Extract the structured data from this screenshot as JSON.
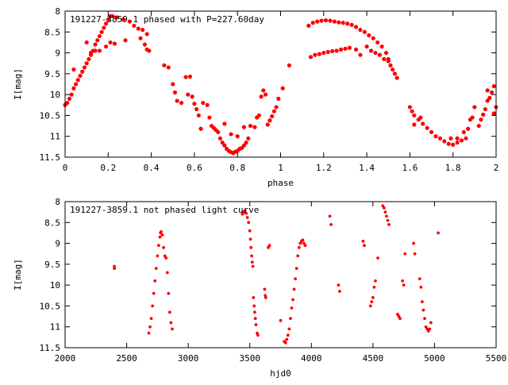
{
  "chart_data": [
    {
      "type": "scatter",
      "title": "191227-3859.1 phased with P=227.60day",
      "xlabel": "phase",
      "ylabel": "I[mag]",
      "xlim": [
        0,
        2
      ],
      "ylim": [
        8,
        11.5
      ],
      "y_inverted": true,
      "xticks": [
        "0",
        "0.2",
        "0.4",
        "0.6",
        "0.8",
        "1",
        "1.2",
        "1.4",
        "1.6",
        "1.8",
        "2"
      ],
      "yticks": [
        "8",
        "8.5",
        "9",
        "9.5",
        "10",
        "10.5",
        "11",
        "11.5"
      ],
      "marker_color": "#ff0000",
      "points": [
        [
          0.0,
          10.25
        ],
        [
          0.01,
          10.2
        ],
        [
          0.02,
          10.1
        ],
        [
          0.03,
          10.0
        ],
        [
          0.04,
          9.85
        ],
        [
          0.05,
          9.75
        ],
        [
          0.06,
          9.65
        ],
        [
          0.07,
          9.55
        ],
        [
          0.08,
          9.45
        ],
        [
          0.09,
          9.35
        ],
        [
          0.1,
          9.25
        ],
        [
          0.11,
          9.15
        ],
        [
          0.12,
          9.05
        ],
        [
          0.13,
          8.95
        ],
        [
          0.14,
          8.8
        ],
        [
          0.15,
          8.7
        ],
        [
          0.16,
          8.6
        ],
        [
          0.17,
          8.5
        ],
        [
          0.18,
          8.4
        ],
        [
          0.19,
          8.3
        ],
        [
          0.2,
          8.2
        ],
        [
          0.21,
          8.12
        ],
        [
          0.22,
          8.12
        ],
        [
          0.24,
          8.15
        ],
        [
          0.27,
          8.2
        ],
        [
          0.3,
          8.25
        ],
        [
          0.32,
          8.35
        ],
        [
          0.34,
          8.42
        ],
        [
          0.04,
          9.4
        ],
        [
          0.1,
          8.75
        ],
        [
          0.12,
          9.0
        ],
        [
          0.14,
          8.95
        ],
        [
          0.16,
          8.95
        ],
        [
          0.19,
          8.85
        ],
        [
          0.21,
          8.75
        ],
        [
          0.23,
          8.78
        ],
        [
          0.28,
          8.7
        ],
        [
          0.35,
          8.65
        ],
        [
          0.37,
          8.8
        ],
        [
          0.38,
          8.92
        ],
        [
          0.39,
          8.95
        ],
        [
          0.36,
          8.45
        ],
        [
          0.38,
          8.55
        ],
        [
          0.46,
          9.3
        ],
        [
          0.48,
          9.35
        ],
        [
          0.5,
          9.75
        ],
        [
          0.51,
          9.95
        ],
        [
          0.52,
          10.15
        ],
        [
          0.54,
          10.2
        ],
        [
          0.56,
          9.58
        ],
        [
          0.58,
          9.57
        ],
        [
          0.57,
          10.0
        ],
        [
          0.59,
          10.05
        ],
        [
          0.6,
          10.22
        ],
        [
          0.61,
          10.35
        ],
        [
          0.62,
          10.5
        ],
        [
          0.63,
          10.82
        ],
        [
          0.64,
          10.2
        ],
        [
          0.66,
          10.25
        ],
        [
          0.67,
          10.55
        ],
        [
          0.68,
          10.75
        ],
        [
          0.69,
          10.8
        ],
        [
          0.7,
          10.85
        ],
        [
          0.71,
          10.9
        ],
        [
          0.72,
          11.05
        ],
        [
          0.73,
          11.15
        ],
        [
          0.74,
          11.22
        ],
        [
          0.75,
          11.3
        ],
        [
          0.76,
          11.35
        ],
        [
          0.77,
          11.38
        ],
        [
          0.78,
          11.4
        ],
        [
          0.79,
          11.37
        ],
        [
          0.8,
          11.35
        ],
        [
          0.81,
          11.3
        ],
        [
          0.82,
          11.28
        ],
        [
          0.83,
          11.22
        ],
        [
          0.84,
          11.15
        ],
        [
          0.85,
          11.05
        ],
        [
          0.74,
          10.7
        ],
        [
          0.77,
          10.95
        ],
        [
          0.8,
          11.0
        ],
        [
          0.83,
          10.78
        ],
        [
          0.86,
          10.75
        ],
        [
          0.88,
          10.78
        ],
        [
          0.89,
          10.55
        ],
        [
          0.9,
          10.5
        ],
        [
          0.91,
          10.05
        ],
        [
          0.92,
          9.9
        ],
        [
          0.93,
          10.0
        ],
        [
          0.94,
          10.72
        ],
        [
          0.95,
          10.62
        ],
        [
          0.96,
          10.52
        ],
        [
          0.97,
          10.4
        ],
        [
          0.98,
          10.3
        ],
        [
          0.99,
          10.1
        ],
        [
          1.01,
          9.85
        ],
        [
          1.04,
          9.3
        ],
        [
          1.13,
          8.35
        ],
        [
          1.15,
          8.28
        ],
        [
          1.17,
          8.25
        ],
        [
          1.19,
          8.23
        ],
        [
          1.21,
          8.22
        ],
        [
          1.23,
          8.23
        ],
        [
          1.25,
          8.25
        ],
        [
          1.27,
          8.27
        ],
        [
          1.29,
          8.28
        ],
        [
          1.31,
          8.3
        ],
        [
          1.33,
          8.33
        ],
        [
          1.35,
          8.38
        ],
        [
          1.37,
          8.45
        ],
        [
          1.39,
          8.5
        ],
        [
          1.41,
          8.58
        ],
        [
          1.43,
          8.65
        ],
        [
          1.45,
          8.75
        ],
        [
          1.47,
          8.85
        ],
        [
          1.49,
          9.0
        ],
        [
          1.5,
          9.15
        ],
        [
          1.51,
          9.3
        ],
        [
          1.52,
          9.4
        ],
        [
          1.53,
          9.5
        ],
        [
          1.54,
          9.6
        ],
        [
          1.14,
          9.1
        ],
        [
          1.16,
          9.05
        ],
        [
          1.18,
          9.03
        ],
        [
          1.2,
          9.0
        ],
        [
          1.22,
          8.98
        ],
        [
          1.24,
          8.96
        ],
        [
          1.26,
          8.95
        ],
        [
          1.28,
          8.92
        ],
        [
          1.3,
          8.9
        ],
        [
          1.32,
          8.88
        ],
        [
          1.35,
          8.92
        ],
        [
          1.37,
          9.05
        ],
        [
          1.4,
          8.85
        ],
        [
          1.42,
          8.95
        ],
        [
          1.44,
          9.0
        ],
        [
          1.46,
          9.05
        ],
        [
          1.48,
          9.15
        ],
        [
          1.5,
          9.2
        ],
        [
          1.6,
          10.3
        ],
        [
          1.61,
          10.4
        ],
        [
          1.62,
          10.5
        ],
        [
          1.64,
          10.6
        ],
        [
          1.66,
          10.7
        ],
        [
          1.68,
          10.8
        ],
        [
          1.7,
          10.9
        ],
        [
          1.72,
          11.0
        ],
        [
          1.74,
          11.05
        ],
        [
          1.76,
          11.12
        ],
        [
          1.78,
          11.18
        ],
        [
          1.8,
          11.2
        ],
        [
          1.82,
          11.15
        ],
        [
          1.84,
          11.1
        ],
        [
          1.86,
          11.05
        ],
        [
          1.62,
          10.72
        ],
        [
          1.65,
          10.55
        ],
        [
          1.79,
          11.05
        ],
        [
          1.82,
          11.05
        ],
        [
          1.85,
          10.9
        ],
        [
          1.87,
          10.82
        ],
        [
          1.88,
          10.6
        ],
        [
          1.89,
          10.55
        ],
        [
          1.9,
          10.3
        ],
        [
          1.92,
          10.75
        ],
        [
          1.93,
          10.6
        ],
        [
          1.94,
          10.48
        ],
        [
          1.95,
          10.35
        ],
        [
          1.96,
          10.15
        ],
        [
          1.97,
          10.08
        ],
        [
          1.98,
          9.95
        ],
        [
          1.99,
          9.8
        ],
        [
          2.0,
          10.3
        ],
        [
          1.96,
          9.9
        ],
        [
          1.99,
          10.45
        ]
      ]
    },
    {
      "type": "scatter",
      "title": "191227-3859.1 not phased light curve",
      "xlabel": "hjd0",
      "ylabel": "I[mag]",
      "xlim": [
        2000,
        5500
      ],
      "ylim": [
        8,
        11.5
      ],
      "y_inverted": true,
      "xticks": [
        "2000",
        "2500",
        "3000",
        "3500",
        "4000",
        "4500",
        "5000",
        "5500"
      ],
      "yticks": [
        "8",
        "8.5",
        "9",
        "9.5",
        "10",
        "10.5",
        "11",
        "11.5"
      ],
      "marker_color": "#ff0000",
      "points": [
        [
          2400,
          9.55
        ],
        [
          2400,
          9.6
        ],
        [
          2680,
          11.15
        ],
        [
          2690,
          11.0
        ],
        [
          2700,
          10.8
        ],
        [
          2710,
          10.5
        ],
        [
          2720,
          10.2
        ],
        [
          2730,
          9.9
        ],
        [
          2740,
          9.6
        ],
        [
          2750,
          9.3
        ],
        [
          2760,
          9.05
        ],
        [
          2770,
          8.85
        ],
        [
          2775,
          8.75
        ],
        [
          2780,
          8.72
        ],
        [
          2790,
          8.8
        ],
        [
          2800,
          9.1
        ],
        [
          2810,
          9.3
        ],
        [
          2820,
          9.35
        ],
        [
          2830,
          9.7
        ],
        [
          2840,
          10.2
        ],
        [
          2850,
          10.65
        ],
        [
          2860,
          10.9
        ],
        [
          2870,
          11.05
        ],
        [
          3440,
          8.3
        ],
        [
          3450,
          8.25
        ],
        [
          3460,
          8.22
        ],
        [
          3470,
          8.28
        ],
        [
          3480,
          8.38
        ],
        [
          3490,
          8.5
        ],
        [
          3500,
          8.7
        ],
        [
          3505,
          8.9
        ],
        [
          3510,
          9.1
        ],
        [
          3515,
          9.3
        ],
        [
          3520,
          9.45
        ],
        [
          3525,
          9.55
        ],
        [
          3530,
          10.3
        ],
        [
          3535,
          10.5
        ],
        [
          3540,
          10.65
        ],
        [
          3545,
          10.8
        ],
        [
          3550,
          10.95
        ],
        [
          3560,
          11.15
        ],
        [
          3565,
          11.2
        ],
        [
          3620,
          10.1
        ],
        [
          3625,
          10.25
        ],
        [
          3630,
          10.3
        ],
        [
          3650,
          9.1
        ],
        [
          3660,
          9.05
        ],
        [
          3750,
          10.85
        ],
        [
          3780,
          11.35
        ],
        [
          3790,
          11.38
        ],
        [
          3800,
          11.3
        ],
        [
          3810,
          11.2
        ],
        [
          3820,
          11.05
        ],
        [
          3830,
          10.8
        ],
        [
          3840,
          10.55
        ],
        [
          3850,
          10.35
        ],
        [
          3860,
          10.1
        ],
        [
          3870,
          9.85
        ],
        [
          3880,
          9.6
        ],
        [
          3890,
          9.3
        ],
        [
          3900,
          9.1
        ],
        [
          3910,
          9.0
        ],
        [
          3920,
          8.95
        ],
        [
          3930,
          8.92
        ],
        [
          3940,
          9.0
        ],
        [
          3950,
          9.05
        ],
        [
          4150,
          8.35
        ],
        [
          4160,
          8.55
        ],
        [
          4220,
          10.0
        ],
        [
          4230,
          10.15
        ],
        [
          4420,
          8.95
        ],
        [
          4430,
          9.05
        ],
        [
          4480,
          10.5
        ],
        [
          4490,
          10.4
        ],
        [
          4500,
          10.3
        ],
        [
          4510,
          10.05
        ],
        [
          4520,
          9.9
        ],
        [
          4540,
          9.35
        ],
        [
          4580,
          8.1
        ],
        [
          4590,
          8.15
        ],
        [
          4600,
          8.25
        ],
        [
          4610,
          8.35
        ],
        [
          4620,
          8.45
        ],
        [
          4630,
          8.55
        ],
        [
          4700,
          10.7
        ],
        [
          4710,
          10.75
        ],
        [
          4720,
          10.8
        ],
        [
          4740,
          9.9
        ],
        [
          4750,
          10.0
        ],
        [
          4760,
          9.25
        ],
        [
          4830,
          9.0
        ],
        [
          4840,
          9.25
        ],
        [
          4880,
          9.85
        ],
        [
          4890,
          10.05
        ],
        [
          4900,
          10.4
        ],
        [
          4910,
          10.6
        ],
        [
          4920,
          10.8
        ],
        [
          4930,
          11.0
        ],
        [
          4940,
          11.05
        ],
        [
          4950,
          11.1
        ],
        [
          4960,
          11.05
        ],
        [
          4970,
          10.9
        ],
        [
          5030,
          8.75
        ]
      ]
    }
  ]
}
